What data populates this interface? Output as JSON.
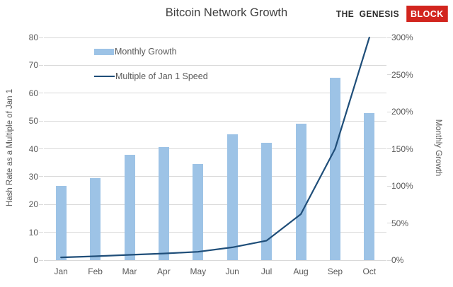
{
  "header": {
    "title": "Bitcoin Network Growth",
    "logo": {
      "prefix": "THE GENESIS",
      "suffix": "BLOCK"
    }
  },
  "chart_data": {
    "type": "bar",
    "subtype": "combo-bar-line-dual-axis",
    "title": "Bitcoin Network Growth",
    "categories": [
      "Jan",
      "Feb",
      "Mar",
      "Apr",
      "May",
      "Jun",
      "Jul",
      "Aug",
      "Sep",
      "Oct"
    ],
    "series": [
      {
        "name": "Monthly Growth",
        "type": "bar",
        "axis": "right",
        "unit": "%",
        "values": [
          100,
          111,
          142,
          152,
          130,
          170,
          158,
          184,
          246,
          198
        ]
      },
      {
        "name": "Multiple of Jan 1 Speed",
        "type": "line",
        "axis": "left",
        "values": [
          1,
          1.4,
          1.9,
          2.4,
          3,
          4.6,
          7,
          16.5,
          40,
          80
        ]
      }
    ],
    "left_axis": {
      "label": "Hash Rate as a Multiple of Jan 1",
      "min": 0,
      "max": 80,
      "ticks": [
        0,
        10,
        20,
        30,
        40,
        50,
        60,
        70,
        80
      ]
    },
    "right_axis": {
      "label": "Monthly Growth",
      "min": 0,
      "max": 300,
      "ticks": [
        0,
        50,
        100,
        150,
        200,
        250,
        300
      ],
      "tick_suffix": "%"
    },
    "grid": true,
    "legend_position": "inside-top-left",
    "colors": {
      "bar": "#9DC3E6",
      "line": "#1F4E79",
      "grid": "#D9D9D9",
      "text": "#595959",
      "title": "#404040",
      "logo_red": "#D2251E"
    }
  }
}
